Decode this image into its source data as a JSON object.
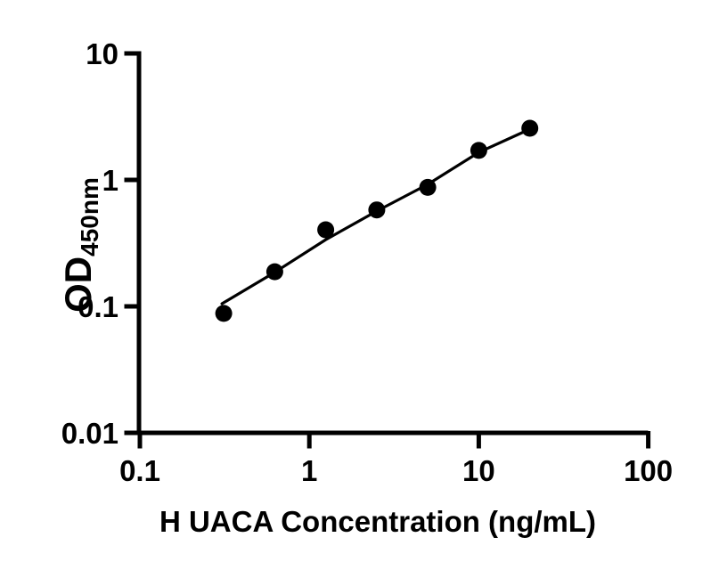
{
  "figure": {
    "background_color": "#ffffff",
    "ink_color": "#000000"
  },
  "chart_data": {
    "type": "scatter",
    "title": "",
    "xlabel": "H UACA Concentration (ng/mL)",
    "ylabel": "OD",
    "ylabel_subscript": "450nm",
    "x_scale": "log10",
    "y_scale": "log10",
    "xlim": [
      0.1,
      100
    ],
    "ylim": [
      0.01,
      10
    ],
    "grid": false,
    "legend": false,
    "x_ticks": {
      "values": [
        0.1,
        1,
        10,
        100
      ],
      "labels": [
        "0.1",
        "1",
        "10",
        "100"
      ]
    },
    "y_ticks": {
      "values": [
        10,
        1,
        0.1,
        0.01
      ],
      "labels": [
        "10",
        "1",
        "0.1",
        "0.01"
      ]
    },
    "series": [
      {
        "name": "fit-line",
        "type": "line",
        "color": "#000000",
        "stroke_width": 3.2,
        "points": [
          {
            "x": 0.305,
            "y": 0.105
          },
          {
            "x": 0.625,
            "y": 0.186
          },
          {
            "x": 1.25,
            "y": 0.337
          },
          {
            "x": 2.5,
            "y": 0.567
          },
          {
            "x": 5,
            "y": 0.922
          },
          {
            "x": 10,
            "y": 1.65
          },
          {
            "x": 20,
            "y": 2.52
          }
        ]
      },
      {
        "name": "standard-points",
        "type": "scatter",
        "marker": "filled-circle",
        "color": "#000000",
        "marker_radius": 9.5,
        "points": [
          {
            "x": 0.3125,
            "y": 0.088
          },
          {
            "x": 0.625,
            "y": 0.188
          },
          {
            "x": 1.25,
            "y": 0.403
          },
          {
            "x": 2.5,
            "y": 0.579
          },
          {
            "x": 5,
            "y": 0.873
          },
          {
            "x": 10,
            "y": 1.71
          },
          {
            "x": 20,
            "y": 2.56
          }
        ]
      }
    ]
  }
}
